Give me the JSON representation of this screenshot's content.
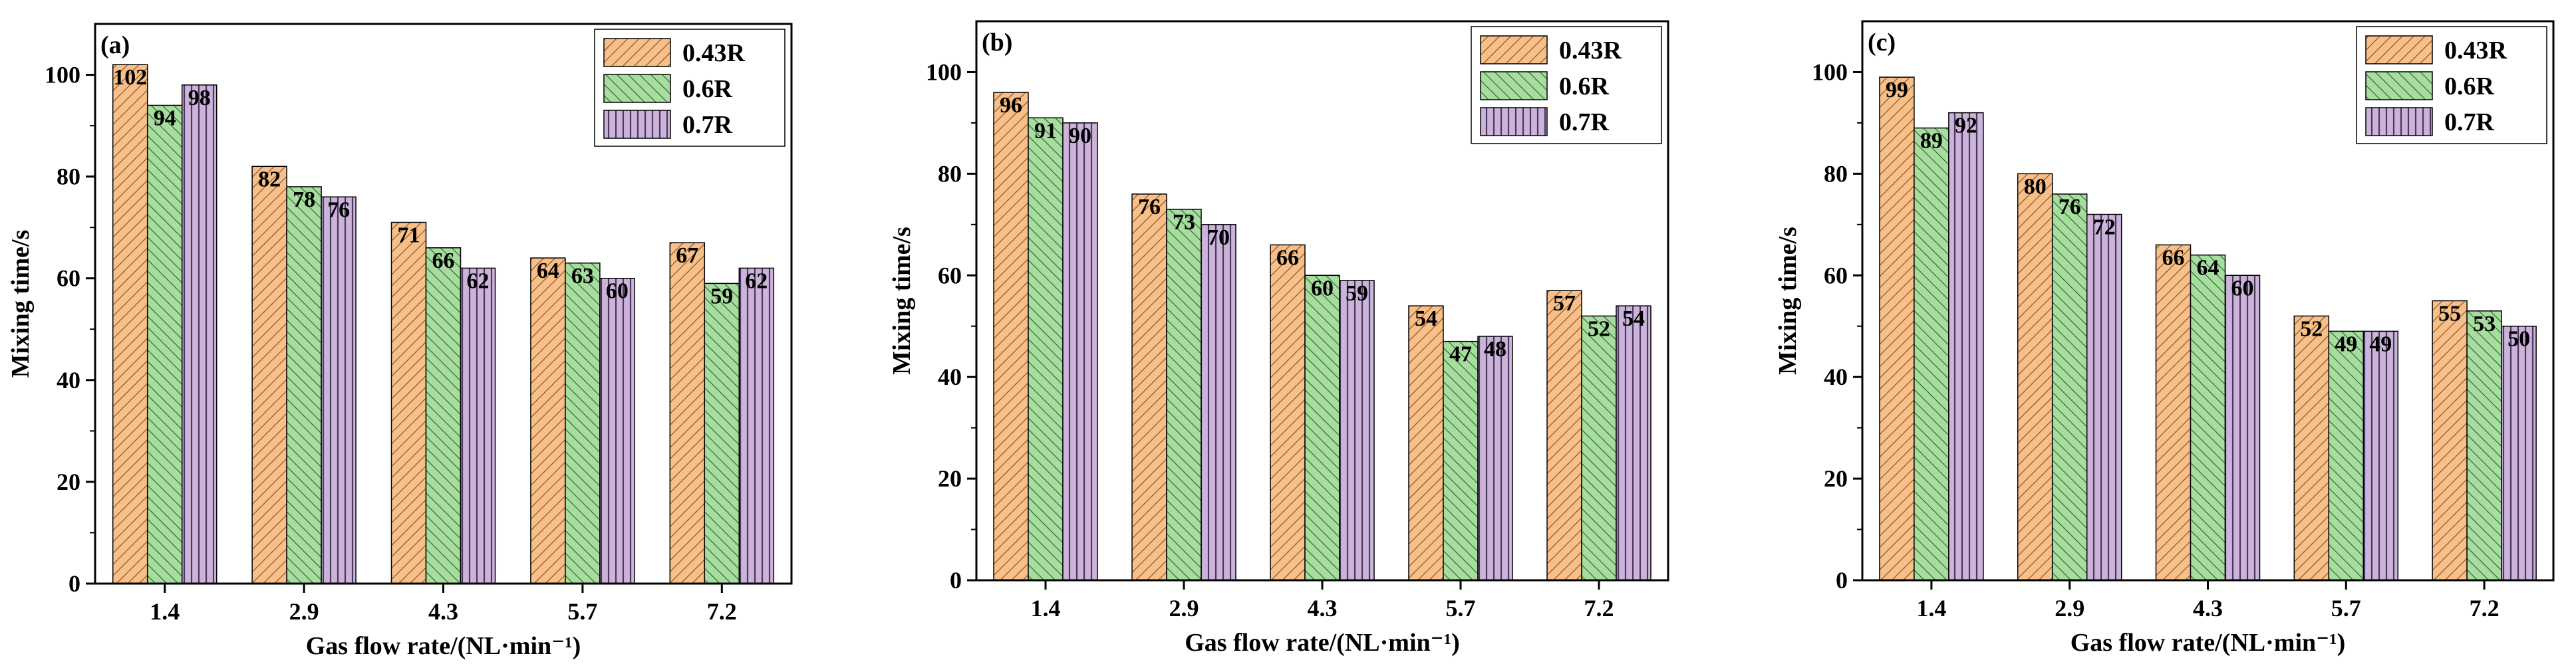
{
  "chart_data": [
    {
      "type": "bar",
      "panel": "(a)",
      "xlabel": "Gas flow rate/(NL·min⁻¹)",
      "ylabel": "Mixing time/s",
      "ylim": [
        0,
        110
      ],
      "yticks": [
        0,
        20,
        40,
        60,
        80,
        100
      ],
      "categories": [
        "1.4",
        "2.9",
        "4.3",
        "5.7",
        "7.2"
      ],
      "series": [
        {
          "name": "0.43R",
          "values": [
            102,
            82,
            71,
            64,
            67
          ]
        },
        {
          "name": "0.6R",
          "values": [
            94,
            78,
            66,
            63,
            59
          ]
        },
        {
          "name": "0.7R",
          "values": [
            98,
            76,
            62,
            60,
            62
          ]
        }
      ],
      "legend": "top-right",
      "grid": false
    },
    {
      "type": "bar",
      "panel": "(b)",
      "xlabel": "Gas flow rate/(NL·min⁻¹)",
      "ylabel": "Mixing time/s",
      "ylim": [
        0,
        110
      ],
      "yticks": [
        0,
        20,
        40,
        60,
        80,
        100
      ],
      "categories": [
        "1.4",
        "2.9",
        "4.3",
        "5.7",
        "7.2"
      ],
      "series": [
        {
          "name": "0.43R",
          "values": [
            96,
            76,
            66,
            54,
            57
          ]
        },
        {
          "name": "0.6R",
          "values": [
            91,
            73,
            60,
            47,
            52
          ]
        },
        {
          "name": "0.7R",
          "values": [
            90,
            70,
            59,
            48,
            54
          ]
        }
      ],
      "legend": "top-right",
      "grid": false
    },
    {
      "type": "bar",
      "panel": "(c)",
      "xlabel": "Gas flow rate/(NL·min⁻¹)",
      "ylabel": "Mixing time/s",
      "ylim": [
        0,
        110
      ],
      "yticks": [
        0,
        20,
        40,
        60,
        80,
        100
      ],
      "categories": [
        "1.4",
        "2.9",
        "4.3",
        "5.7",
        "7.2"
      ],
      "series": [
        {
          "name": "0.43R",
          "values": [
            99,
            80,
            66,
            52,
            55
          ]
        },
        {
          "name": "0.6R",
          "values": [
            89,
            76,
            64,
            49,
            53
          ]
        },
        {
          "name": "0.7R",
          "values": [
            92,
            72,
            60,
            49,
            50
          ]
        }
      ],
      "legend": "top-right",
      "grid": false
    }
  ],
  "colors": {
    "series_fill": [
      "#f7c08a",
      "#a8dca0",
      "#cbb3d9"
    ],
    "series_hatch": [
      "#8a4a10",
      "#1e6a1e",
      "#4a3860"
    ],
    "axis": "#000000"
  }
}
